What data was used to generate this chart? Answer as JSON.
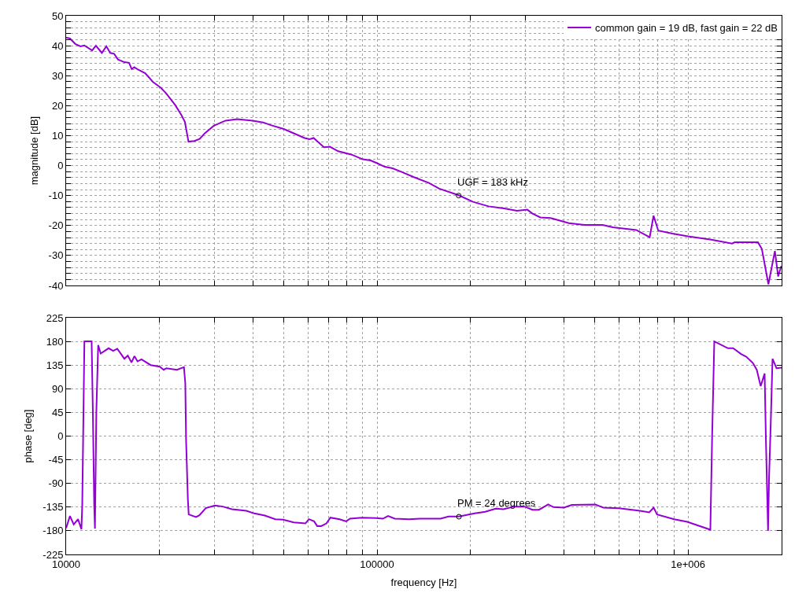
{
  "chart_data": [
    {
      "type": "line",
      "ylabel": "magnitude [dB]",
      "log": "x",
      "grid": true,
      "legend": "top right",
      "tick_labels": "y",
      "xlim": [
        10000,
        2000000
      ],
      "xticks": [
        {
          "value": 10000,
          "label": null
        },
        {
          "value": 20000,
          "label": null
        },
        {
          "value": 30000,
          "label": null
        },
        {
          "value": 40000,
          "label": null
        },
        {
          "value": 50000,
          "label": null
        },
        {
          "value": 60000,
          "label": null
        },
        {
          "value": 70000,
          "label": null
        },
        {
          "value": 80000,
          "label": null
        },
        {
          "value": 90000,
          "label": null
        },
        {
          "value": 100000,
          "label": null
        },
        {
          "value": 200000,
          "label": null
        },
        {
          "value": 300000,
          "label": null
        },
        {
          "value": 400000,
          "label": null
        },
        {
          "value": 500000,
          "label": null
        },
        {
          "value": 600000,
          "label": null
        },
        {
          "value": 700000,
          "label": null
        },
        {
          "value": 800000,
          "label": null
        },
        {
          "value": 900000,
          "label": null
        },
        {
          "value": 1000000,
          "label": null
        },
        {
          "value": 2000000,
          "label": null
        }
      ],
      "ylim": [
        -40,
        50
      ],
      "yticks": [
        -40,
        {
          "value": -38,
          "label": null
        },
        {
          "value": -36,
          "label": null
        },
        {
          "value": -34,
          "label": null
        },
        {
          "value": -32,
          "label": null
        },
        -30,
        {
          "value": -28,
          "label": null
        },
        {
          "value": -26,
          "label": null
        },
        {
          "value": -24,
          "label": null
        },
        {
          "value": -22,
          "label": null
        },
        -20,
        {
          "value": -18,
          "label": null
        },
        {
          "value": -16,
          "label": null
        },
        {
          "value": -14,
          "label": null
        },
        {
          "value": -12,
          "label": null
        },
        -10,
        {
          "value": -8,
          "label": null
        },
        {
          "value": -6,
          "label": null
        },
        {
          "value": -4,
          "label": null
        },
        {
          "value": -2,
          "label": null
        },
        0,
        {
          "value": 2,
          "label": null
        },
        {
          "value": 4,
          "label": null
        },
        {
          "value": 6,
          "label": null
        },
        {
          "value": 8,
          "label": null
        },
        10,
        {
          "value": 12,
          "label": null
        },
        {
          "value": 14,
          "label": null
        },
        {
          "value": 16,
          "label": null
        },
        {
          "value": 18,
          "label": null
        },
        20,
        {
          "value": 22,
          "label": null
        },
        {
          "value": 24,
          "label": null
        },
        {
          "value": 26,
          "label": null
        },
        {
          "value": 28,
          "label": null
        },
        30,
        {
          "value": 32,
          "label": null
        },
        {
          "value": 34,
          "label": null
        },
        {
          "value": 36,
          "label": null
        },
        {
          "value": 38,
          "label": null
        },
        40,
        {
          "value": 42,
          "label": null
        },
        {
          "value": 44,
          "label": null
        },
        {
          "value": 46,
          "label": null
        },
        {
          "value": 48,
          "label": null
        },
        50
      ],
      "x": [
        10000,
        10290,
        10700,
        11120,
        11440,
        12120,
        12470,
        13030,
        13470,
        13860,
        14270,
        14680,
        15400,
        15940,
        16250,
        16570,
        17120,
        17960,
        19030,
        20150,
        20940,
        22390,
        23500,
        24090,
        24750,
        25860,
        26880,
        27930,
        29850,
        32550,
        35480,
        39810,
        43010,
        45550,
        50120,
        54140,
        58450,
        60740,
        62520,
        67490,
        70550,
        74990,
        82570,
        90000,
        95350,
        100000,
        105900,
        112200,
        121200,
        130900,
        146800,
        158500,
        183100,
        203500,
        228400,
        256200,
        281800,
        304300,
        316200,
        335000,
        361800,
        414000,
        464500,
        530900,
        573400,
        681700,
        752900,
        775000,
        802200,
        891300,
        1000000,
        1189000,
        1386000,
        1413000,
        1679000,
        1728000,
        1814000,
        1903000,
        1950000,
        1995000
      ],
      "series": [
        {
          "name": "common gain = 19 dB, fast gain = 22 dB",
          "color": "#9400d3",
          "values": [
            42.7,
            42.4,
            40.6,
            39.8,
            40.1,
            38.4,
            40.0,
            37.6,
            39.8,
            37.6,
            37.3,
            35.4,
            34.5,
            34.3,
            32.2,
            32.8,
            31.9,
            30.8,
            27.9,
            26.0,
            24.2,
            20.3,
            16.8,
            14.6,
            8.0,
            8.2,
            8.9,
            10.8,
            13.3,
            15.0,
            15.5,
            15.0,
            14.4,
            13.5,
            12.2,
            10.7,
            9.2,
            8.8,
            9.2,
            6.1,
            6.3,
            4.8,
            3.7,
            2.1,
            1.7,
            0.8,
            -0.4,
            -0.9,
            -2.3,
            -3.8,
            -5.8,
            -7.7,
            -9.9,
            -12.1,
            -13.6,
            -14.3,
            -15.1,
            -14.7,
            -16.0,
            -17.3,
            -17.5,
            -19.2,
            -19.8,
            -19.8,
            -20.6,
            -21.5,
            -23.9,
            -16.7,
            -21.7,
            -22.7,
            -23.6,
            -24.7,
            -26.0,
            -25.6,
            -25.6,
            -27.8,
            -39.6,
            -28.5,
            -37.0,
            -33.5
          ]
        }
      ],
      "annotations": [
        {
          "text": "UGF = 183 kHz",
          "x": 183000,
          "y": -10
        }
      ]
    },
    {
      "type": "line",
      "xlabel": "frequency [Hz]",
      "ylabel": "phase [deg]",
      "log": "x",
      "grid": true,
      "xlim": [
        10000,
        2000000
      ],
      "xticks": [
        10000,
        {
          "value": 20000,
          "label": null
        },
        {
          "value": 30000,
          "label": null
        },
        {
          "value": 40000,
          "label": null
        },
        {
          "value": 50000,
          "label": null
        },
        {
          "value": 60000,
          "label": null
        },
        {
          "value": 70000,
          "label": null
        },
        {
          "value": 80000,
          "label": null
        },
        {
          "value": 90000,
          "label": null
        },
        100000,
        {
          "value": 200000,
          "label": null
        },
        {
          "value": 300000,
          "label": null
        },
        {
          "value": 400000,
          "label": null
        },
        {
          "value": 500000,
          "label": null
        },
        {
          "value": 600000,
          "label": null
        },
        {
          "value": 700000,
          "label": null
        },
        {
          "value": 800000,
          "label": null
        },
        {
          "value": 900000,
          "label": null
        },
        {
          "value": 1000000,
          "label": "1e+006"
        },
        {
          "value": 2000000,
          "label": null
        }
      ],
      "ylim": [
        -225,
        225
      ],
      "yticks": [
        -225,
        -180,
        -135,
        -90,
        -45,
        0,
        45,
        90,
        135,
        180,
        225
      ],
      "x": [
        10000,
        10290,
        10580,
        10920,
        11200,
        11270,
        11450,
        12080,
        12190,
        12310,
        12380,
        12510,
        12680,
        12920,
        13700,
        14160,
        14610,
        15390,
        15790,
        16230,
        16580,
        16970,
        17470,
        18700,
        20010,
        20600,
        21010,
        22710,
        23930,
        24170,
        24310,
        24640,
        24790,
        26160,
        26780,
        28120,
        30100,
        31910,
        34150,
        38000,
        40280,
        43550,
        47070,
        49890,
        53920,
        58850,
        60350,
        62730,
        64200,
        66110,
        68740,
        70780,
        75780,
        79530,
        81890,
        89340,
        99420,
        104400,
        108500,
        114000,
        126800,
        137000,
        160100,
        169700,
        183400,
        206000,
        222700,
        240700,
        255200,
        275700,
        298200,
        316000,
        331700,
        355100,
        369100,
        399000,
        422900,
        503800,
        534200,
        600000,
        701000,
        750400,
        775600,
        795200,
        902800,
        994300,
        1180000,
        1196000,
        1215000,
        1344000,
        1397000,
        1481000,
        1539000,
        1617000,
        1664000,
        1713000,
        1764000,
        1780000,
        1809000,
        1823000,
        1844000,
        1870000,
        1926000,
        2000000
      ],
      "series": [
        {
          "color": "#9400d3",
          "values": [
            -175,
            -152,
            -168,
            -158,
            -177,
            -131,
            180,
            180,
            47,
            -131,
            -176,
            47,
            173,
            157,
            167,
            162,
            166,
            147,
            153,
            140,
            152,
            142,
            146,
            135,
            132,
            126,
            129,
            126,
            131,
            101,
            -7,
            -121,
            -149,
            -154,
            -151,
            -137,
            -132,
            -134,
            -139,
            -142,
            -147,
            -151,
            -158,
            -159,
            -164,
            -166,
            -158,
            -162,
            -171,
            -171,
            -166,
            -155,
            -158,
            -162,
            -157,
            -155,
            -156,
            -157,
            -152,
            -157,
            -158,
            -157,
            -157,
            -153,
            -153,
            -147,
            -144,
            -138,
            -139,
            -134,
            -134,
            -140,
            -140,
            -130,
            -135,
            -136,
            -131,
            -130,
            -136,
            -137,
            -142,
            -145,
            -136,
            -149,
            -158,
            -163,
            -178,
            3,
            180,
            167,
            167,
            156,
            151,
            139,
            126,
            95,
            119,
            -3,
            -180,
            -77,
            17,
            147,
            129,
            130
          ]
        }
      ],
      "annotations": [
        {
          "text": "PM = 24 degrees",
          "x": 183400,
          "y": -153.3
        }
      ]
    }
  ]
}
